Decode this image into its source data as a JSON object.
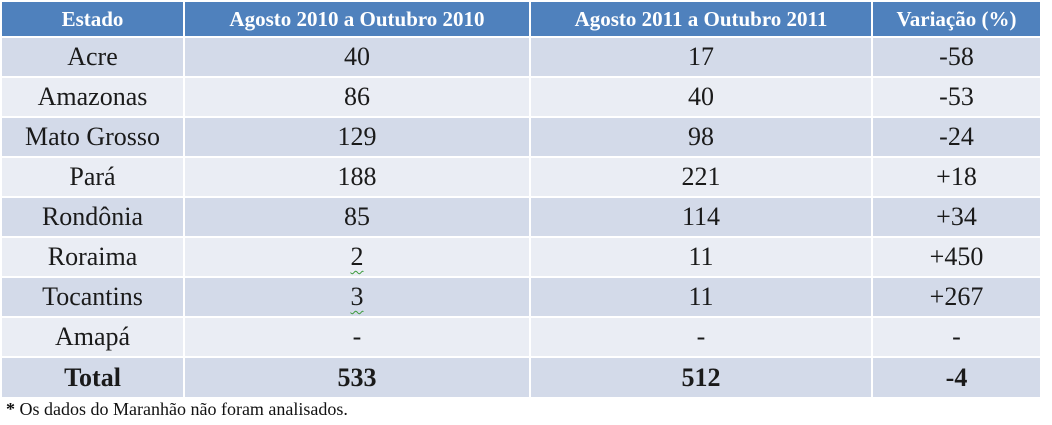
{
  "table": {
    "headers": [
      "Estado",
      "Agosto 2010 a Outubro 2010",
      "Agosto 2011 a Outubro  2011",
      "Variação (%)"
    ],
    "rows": [
      [
        "Acre",
        "40",
        "17",
        "-58"
      ],
      [
        "Amazonas",
        "86",
        "40",
        "-53"
      ],
      [
        "Mato Grosso",
        "129",
        "98",
        "-24"
      ],
      [
        "Pará",
        "188",
        "221",
        "+18"
      ],
      [
        "Rondônia",
        "85",
        "114",
        "+34"
      ],
      [
        "Roraima",
        "2",
        "11",
        "+450"
      ],
      [
        "Tocantins",
        "3",
        "11",
        "+267"
      ],
      [
        "Amapá",
        "-",
        "-",
        "-"
      ]
    ],
    "total": [
      "Total",
      "533",
      "512",
      "-4"
    ]
  },
  "footnote": {
    "star": "*",
    "text": " Os dados do Maranhão não foram analisados."
  },
  "colors": {
    "header_bg": "#4f81bd",
    "row_odd_bg": "#d3dae9",
    "row_even_bg": "#eaedf4"
  }
}
